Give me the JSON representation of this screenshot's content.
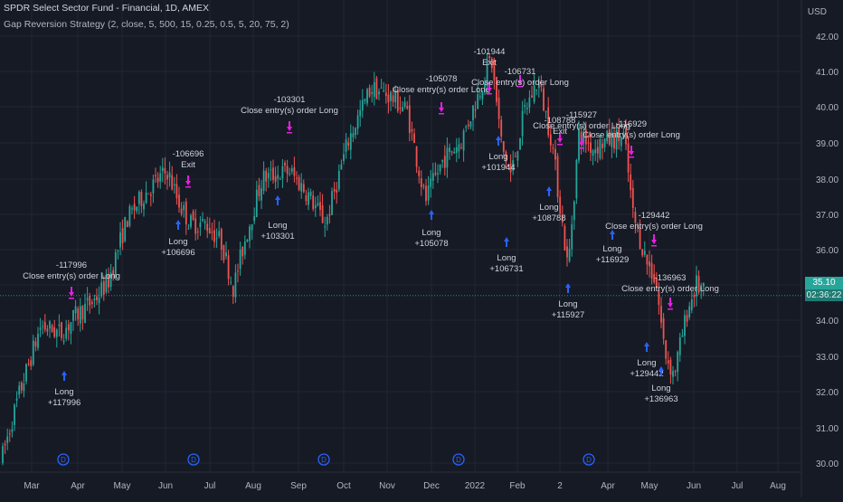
{
  "header": {
    "title": "SPDR Select Sector Fund - Financial, 1D, AMEX",
    "strategy": "Gap Reversion Strategy (2, close, 5, 500, 15, 0.25, 0.5, 5, 20, 75, 2)"
  },
  "axis": {
    "currency": "USD",
    "last_price": "35.10",
    "countdown": "02:36:22"
  },
  "colors": {
    "background": "#161a25",
    "grid": "#232734",
    "up": "#26a69a",
    "down": "#ef5350",
    "entry": "#2962ff",
    "exit": "#e91ee3",
    "label_text": "#d1d4dc",
    "dividend": "#2962ff"
  },
  "chart_data": {
    "type": "candlestick",
    "title": "SPDR Select Sector Fund - Financial, 1D, AMEX",
    "ylim": [
      29.9,
      42.4
    ],
    "y_ticks": [
      "30.00",
      "31.00",
      "32.00",
      "33.00",
      "34.00",
      "35.00",
      "36.00",
      "37.00",
      "38.00",
      "39.00",
      "40.00",
      "41.00",
      "42.00"
    ],
    "x_tick_labels": [
      "Mar",
      "Apr",
      "May",
      "Jun",
      "Jul",
      "Aug",
      "Sep",
      "Oct",
      "Nov",
      "Dec",
      "2022",
      "Feb",
      "2",
      "Apr",
      "May",
      "Jun",
      "Jul",
      "Aug"
    ],
    "grid": true,
    "last_price": 35.1,
    "trades": [
      {
        "entry_label": "Long",
        "entry_amount": "+117996",
        "exit_amount": "-117996",
        "exit_label": "Close entry(s) order Long"
      },
      {
        "entry_label": "Long",
        "entry_amount": "+106696",
        "exit_amount": "-106696",
        "exit_label": "Exit"
      },
      {
        "entry_label": "Long",
        "entry_amount": "+103301",
        "exit_amount": "-103301",
        "exit_label": "Close entry(s) order Long"
      },
      {
        "entry_label": "Long",
        "entry_amount": "+105078",
        "exit_amount": "-105078",
        "exit_label": "Close entry(s) order Long"
      },
      {
        "entry_label": "Long",
        "entry_amount": "+101944",
        "exit_amount": "-101944",
        "exit_label": "Exit"
      },
      {
        "entry_label": "Long",
        "entry_amount": "+106731",
        "exit_amount": "-106731",
        "exit_label": "Close entry(s) order Long"
      },
      {
        "entry_label": "Long",
        "entry_amount": "+108788",
        "exit_amount": "-108788",
        "exit_label": "Exit"
      },
      {
        "entry_label": "Long",
        "entry_amount": "+115927",
        "exit_amount": "-115927",
        "exit_label": "Close entry(s) order Long"
      },
      {
        "entry_label": "Long",
        "entry_amount": "+116929",
        "exit_amount": "-116929",
        "exit_label": "Close entry(s) order Long"
      },
      {
        "entry_label": "Long",
        "entry_amount": "+129442",
        "exit_amount": "-129442",
        "exit_label": "Close entry(s) order Long"
      },
      {
        "entry_label": "Long",
        "entry_amount": "+136963",
        "exit_amount": "-136963",
        "exit_label": "Close entry(s) order Long"
      }
    ],
    "dividend_markers": [
      "D",
      "D",
      "D",
      "D",
      "D"
    ]
  }
}
